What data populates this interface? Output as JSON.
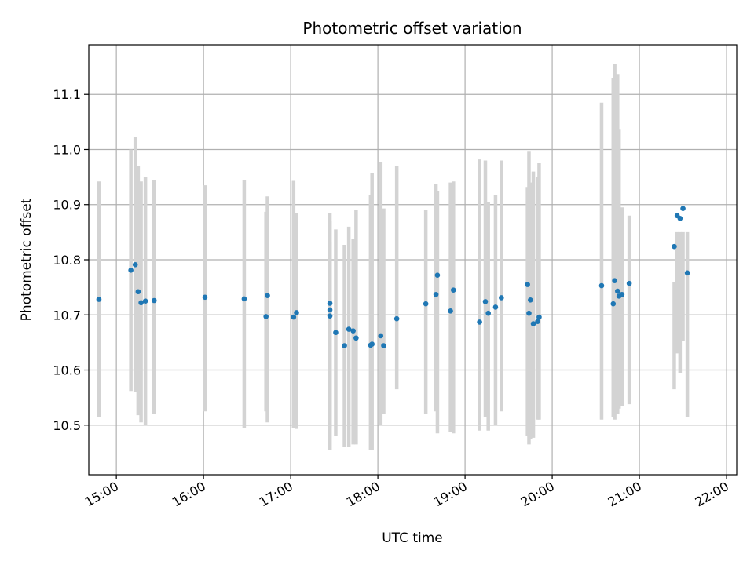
{
  "chart_data": {
    "type": "scatter",
    "title": "Photometric offset variation",
    "xlabel": "UTC time",
    "ylabel": "Photometric offset",
    "xlim": [
      "14:41",
      "22:07"
    ],
    "ylim": [
      10.41,
      11.19
    ],
    "grid": true,
    "x_ticks": [
      "15:00",
      "16:00",
      "17:00",
      "18:00",
      "19:00",
      "20:00",
      "21:00",
      "22:00"
    ],
    "y_ticks": [
      "10.5",
      "10.6",
      "10.7",
      "10.8",
      "10.9",
      "11.0",
      "11.1"
    ],
    "y_tick_values": [
      10.5,
      10.6,
      10.7,
      10.8,
      10.9,
      11.0,
      11.1
    ],
    "colors": {
      "points": "#1f77b4",
      "errorbars": "#d3d3d3",
      "grid": "#b0b0b0"
    },
    "series": [
      {
        "x": [
          "14:48",
          "15:10",
          "15:13",
          "15:15",
          "15:17",
          "15:20",
          "15:26",
          "16:01",
          "16:28",
          "16:43",
          "16:44",
          "17:02",
          "17:04",
          "17:27",
          "17:27",
          "17:27",
          "17:31",
          "17:37",
          "17:40",
          "17:43",
          "17:45",
          "17:55",
          "17:56",
          "18:02",
          "18:04",
          "18:13",
          "18:33",
          "18:40",
          "18:41",
          "18:50",
          "18:52",
          "19:10",
          "19:14",
          "19:16",
          "19:21",
          "19:25",
          "19:43",
          "19:44",
          "19:45",
          "19:47",
          "19:50",
          "19:51",
          "20:34",
          "20:42",
          "20:43",
          "20:45",
          "20:46",
          "20:48",
          "20:53",
          "21:24",
          "21:26",
          "21:28",
          "21:30",
          "21:33"
        ],
        "y": [
          10.728,
          10.781,
          10.791,
          10.742,
          10.722,
          10.725,
          10.726,
          10.732,
          10.729,
          10.697,
          10.735,
          10.696,
          10.704,
          10.721,
          10.709,
          10.698,
          10.668,
          10.644,
          10.674,
          10.671,
          10.658,
          10.645,
          10.647,
          10.662,
          10.644,
          10.693,
          10.72,
          10.737,
          10.772,
          10.707,
          10.745,
          10.687,
          10.724,
          10.703,
          10.714,
          10.731,
          10.755,
          10.703,
          10.727,
          10.684,
          10.688,
          10.696,
          10.753,
          10.72,
          10.762,
          10.743,
          10.734,
          10.737,
          10.757,
          10.824,
          10.88,
          10.875,
          10.893,
          10.776
        ],
        "err_low": [
          10.515,
          10.562,
          10.56,
          10.518,
          10.505,
          10.5,
          10.52,
          10.525,
          10.495,
          10.525,
          10.505,
          10.495,
          10.493,
          10.495,
          10.455,
          10.455,
          10.48,
          10.46,
          10.46,
          10.465,
          10.465,
          10.455,
          10.455,
          10.5,
          10.52,
          10.565,
          10.52,
          10.525,
          10.485,
          10.487,
          10.485,
          10.49,
          10.515,
          10.49,
          10.5,
          10.525,
          10.48,
          10.465,
          10.475,
          10.477,
          10.51,
          10.51,
          10.51,
          10.515,
          10.51,
          10.52,
          10.53,
          10.535,
          10.538,
          10.565,
          10.63,
          10.595,
          10.652,
          10.515
        ],
        "err_high": [
          10.942,
          11.0,
          11.022,
          10.97,
          10.942,
          10.95,
          10.945,
          10.935,
          10.945,
          10.887,
          10.915,
          10.943,
          10.885,
          10.832,
          10.87,
          10.885,
          10.855,
          10.827,
          10.86,
          10.837,
          10.89,
          10.918,
          10.957,
          10.978,
          10.893,
          10.97,
          10.89,
          10.937,
          10.925,
          10.94,
          10.942,
          10.982,
          10.98,
          10.905,
          10.918,
          10.98,
          10.932,
          10.996,
          10.94,
          10.96,
          10.95,
          10.975,
          11.085,
          11.13,
          11.155,
          11.137,
          11.036,
          10.895,
          10.88,
          10.76,
          10.85,
          10.85,
          10.85,
          10.85
        ]
      }
    ]
  }
}
